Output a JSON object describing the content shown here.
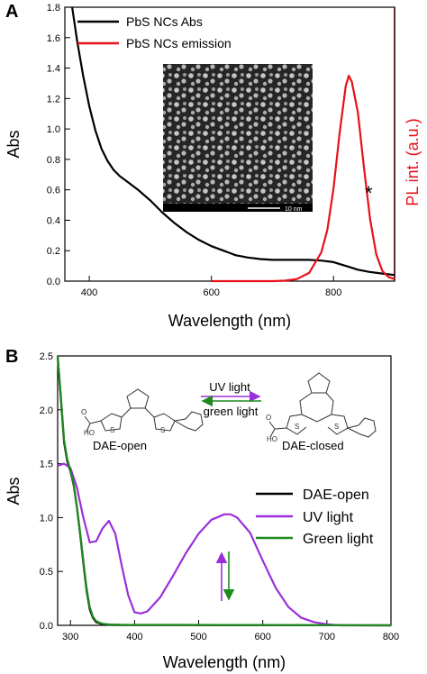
{
  "colors": {
    "black": "#000000",
    "red": "#e8111a",
    "purple": "#9b30d9",
    "green": "#1e8a1e"
  },
  "chart_data": [
    {
      "panel_label": "A",
      "type": "line",
      "xlabel": "Wavelength (nm)",
      "ylabel": "Abs",
      "y2label": "PL int. (a.u.)",
      "xlim": [
        360,
        900
      ],
      "ylim": [
        0.0,
        1.8
      ],
      "xticks": [
        400,
        600,
        800
      ],
      "yticks": [
        0.0,
        0.2,
        0.4,
        0.6,
        0.8,
        1.0,
        1.2,
        1.4,
        1.6,
        1.8
      ],
      "legend_position": "top-left",
      "annotation_asterisk": "*",
      "inset_scalebar_label": "10 nm",
      "series": [
        {
          "name": "PbS NCs Abs",
          "color": "#000000",
          "axis": "left",
          "x": [
            372,
            380,
            390,
            400,
            410,
            420,
            430,
            440,
            450,
            460,
            470,
            480,
            500,
            520,
            540,
            560,
            580,
            600,
            620,
            640,
            660,
            680,
            700,
            720,
            740,
            760,
            780,
            800,
            820,
            840,
            860,
            880,
            900
          ],
          "y": [
            1.8,
            1.58,
            1.35,
            1.15,
            0.99,
            0.87,
            0.79,
            0.73,
            0.69,
            0.66,
            0.63,
            0.6,
            0.53,
            0.45,
            0.38,
            0.32,
            0.27,
            0.23,
            0.2,
            0.17,
            0.155,
            0.145,
            0.14,
            0.14,
            0.14,
            0.14,
            0.135,
            0.125,
            0.1,
            0.075,
            0.06,
            0.05,
            0.04
          ]
        },
        {
          "name": "PbS NCs emission",
          "color": "#e8111a",
          "axis": "right",
          "x": [
            600,
            660,
            700,
            720,
            740,
            760,
            780,
            790,
            800,
            810,
            820,
            825,
            830,
            840,
            850,
            860,
            870,
            880,
            890,
            900
          ],
          "y": [
            0.0,
            0.0,
            0.0,
            0.002,
            0.01,
            0.04,
            0.14,
            0.25,
            0.45,
            0.72,
            0.95,
            1.0,
            0.97,
            0.82,
            0.55,
            0.3,
            0.13,
            0.05,
            0.02,
            0.01
          ]
        }
      ]
    },
    {
      "panel_label": "B",
      "type": "line",
      "xlabel": "Wavelength (nm)",
      "ylabel": "Abs",
      "xlim": [
        280,
        800
      ],
      "ylim": [
        0.0,
        2.5
      ],
      "xticks": [
        300,
        400,
        500,
        600,
        700,
        800
      ],
      "yticks": [
        0.0,
        0.5,
        1.0,
        1.5,
        2.0,
        2.5
      ],
      "legend_position": "center-right",
      "scheme": {
        "open_label": "DAE-open",
        "closed_label": "DAE-closed",
        "forward_label": "UV light",
        "backward_label": "green light",
        "carboxyl_label": "HO",
        "atom_S": "S",
        "atom_O": "O"
      },
      "series": [
        {
          "name": "DAE-open",
          "color": "#000000",
          "x": [
            280,
            285,
            290,
            295,
            300,
            305,
            310,
            315,
            320,
            325,
            330,
            335,
            340,
            345,
            350,
            360,
            380,
            800
          ],
          "y": [
            2.5,
            2.1,
            1.7,
            1.52,
            1.43,
            1.3,
            1.1,
            0.85,
            0.58,
            0.33,
            0.15,
            0.07,
            0.03,
            0.02,
            0.01,
            0.005,
            0.003,
            0.0
          ]
        },
        {
          "name": "UV light",
          "color": "#9b30d9",
          "x": [
            280,
            290,
            300,
            310,
            320,
            330,
            340,
            350,
            360,
            370,
            380,
            390,
            400,
            410,
            420,
            440,
            460,
            480,
            500,
            520,
            540,
            550,
            560,
            580,
            600,
            620,
            640,
            660,
            680,
            700,
            720,
            740,
            760,
            780,
            800
          ],
          "y": [
            1.48,
            1.5,
            1.46,
            1.28,
            1.0,
            0.77,
            0.78,
            0.9,
            0.97,
            0.85,
            0.55,
            0.28,
            0.12,
            0.11,
            0.13,
            0.26,
            0.46,
            0.67,
            0.85,
            0.98,
            1.03,
            1.03,
            1.0,
            0.86,
            0.6,
            0.35,
            0.17,
            0.07,
            0.03,
            0.01,
            0.0,
            0.0,
            0.0,
            0.0,
            0.0
          ]
        },
        {
          "name": "Green light",
          "color": "#1e8a1e",
          "x": [
            280,
            285,
            290,
            295,
            300,
            305,
            310,
            315,
            320,
            325,
            330,
            335,
            340,
            345,
            350,
            360,
            380,
            800
          ],
          "y": [
            2.5,
            2.12,
            1.72,
            1.54,
            1.44,
            1.31,
            1.1,
            0.86,
            0.6,
            0.35,
            0.17,
            0.08,
            0.04,
            0.025,
            0.015,
            0.008,
            0.005,
            0.0
          ]
        }
      ]
    }
  ]
}
